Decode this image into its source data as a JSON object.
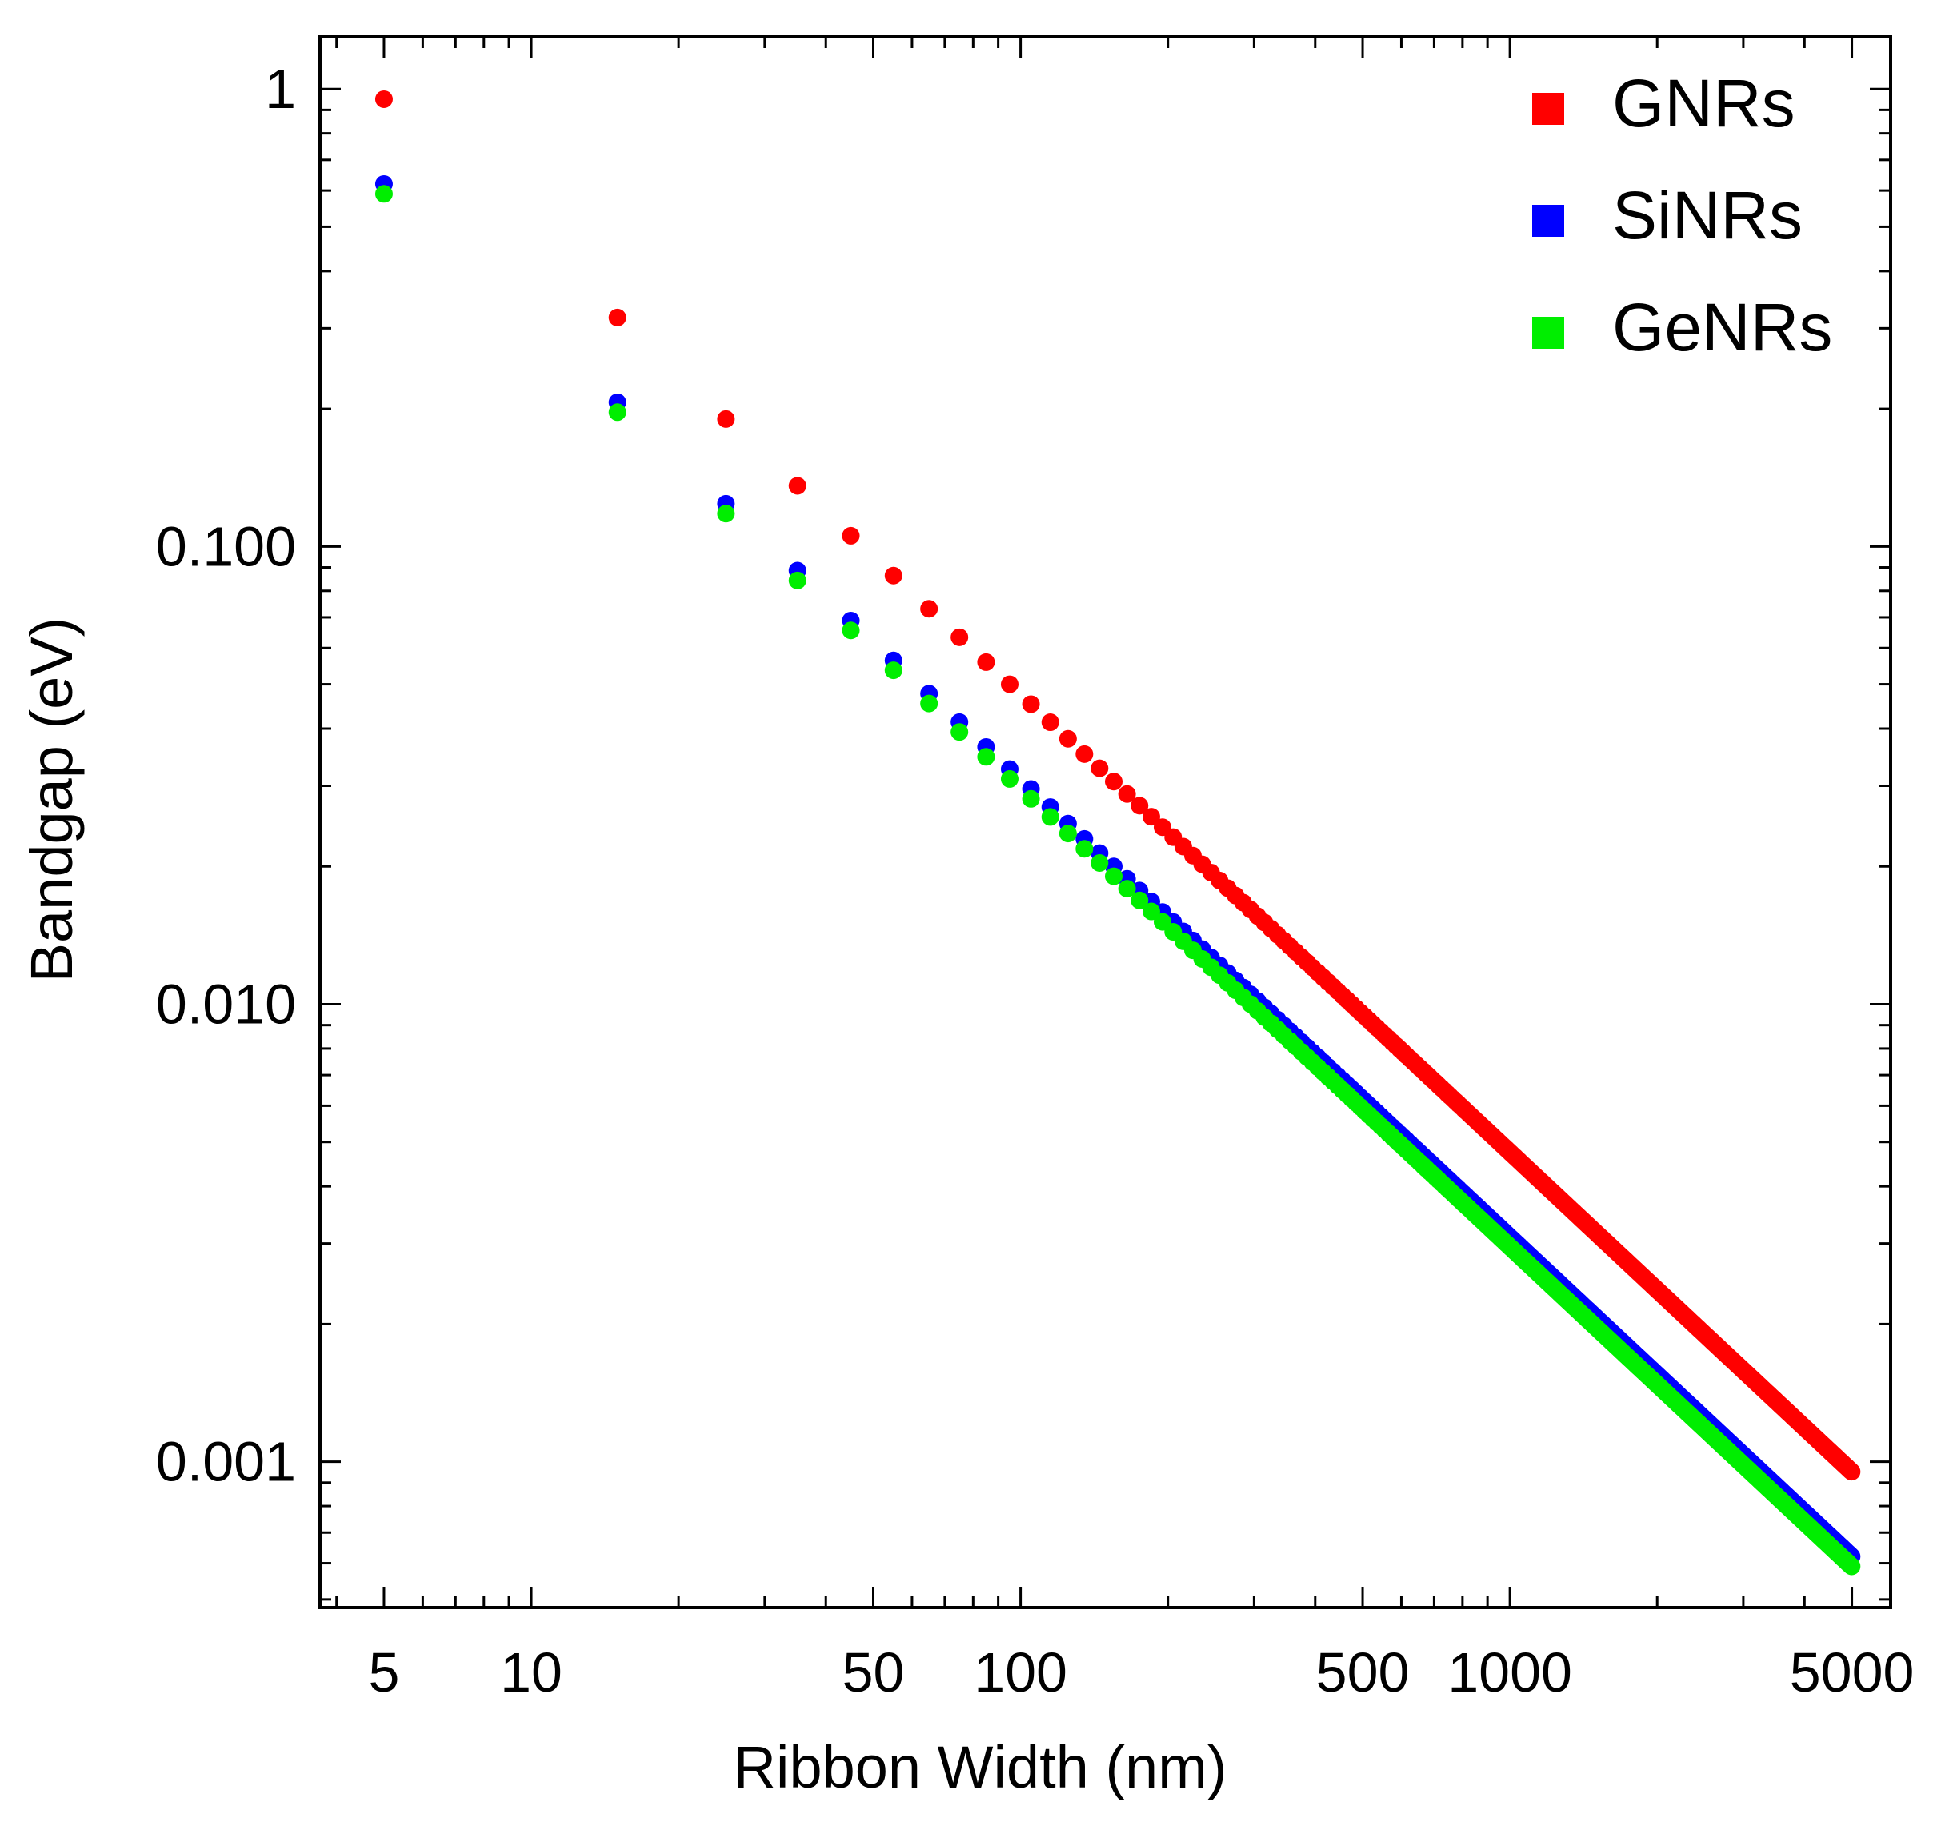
{
  "chart_data": {
    "type": "scatter",
    "title": "",
    "xlabel": "Ribbon Width (nm)",
    "ylabel": "Bandgap (eV)",
    "xscale": "log",
    "yscale": "log",
    "xlim": [
      3.7,
      6000
    ],
    "ylim": [
      0.00048,
      1.3
    ],
    "xticks": [
      {
        "value": 5,
        "label": "5"
      },
      {
        "value": 10,
        "label": "10"
      },
      {
        "value": 50,
        "label": "50"
      },
      {
        "value": 100,
        "label": "100"
      },
      {
        "value": 500,
        "label": "500"
      },
      {
        "value": 1000,
        "label": "1000"
      },
      {
        "value": 5000,
        "label": "5000"
      }
    ],
    "yticks": [
      {
        "value": 1,
        "label": "1"
      },
      {
        "value": 0.1,
        "label": "0.100"
      },
      {
        "value": 0.01,
        "label": "0.010"
      },
      {
        "value": 0.001,
        "label": "0.001"
      }
    ],
    "x_step_nm": 10,
    "x_start_nm": 5,
    "x_end_nm": 4995,
    "legend_position": "top-right",
    "series": [
      {
        "name": "GNRs",
        "color": "#ff0000",
        "prefactor_eV_nm": 4.75,
        "exponent": -1
      },
      {
        "name": "SiNRs",
        "color": "#0000ff",
        "prefactor_eV_nm": 3.1,
        "exponent": -1
      },
      {
        "name": "GeNRs",
        "color": "#00ee00",
        "prefactor_eV_nm": 2.95,
        "exponent": -1
      }
    ]
  }
}
